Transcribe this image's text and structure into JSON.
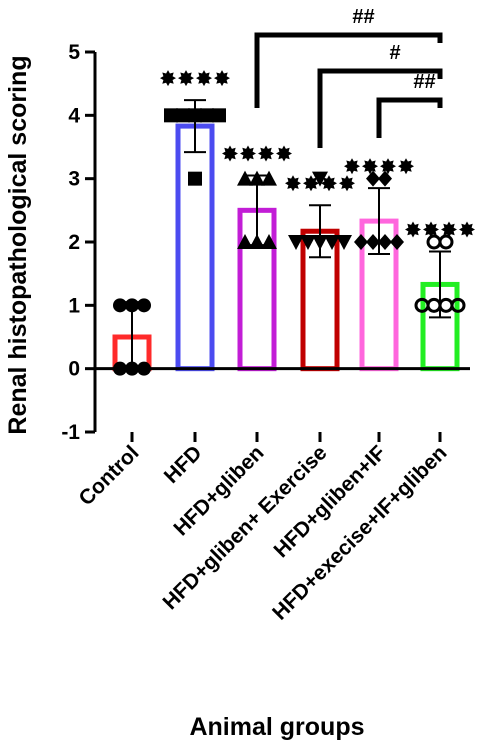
{
  "chart_data": {
    "type": "bar",
    "title": "",
    "ylabel": "Renal histopathological scoring",
    "xlabel": "Animal groups",
    "ylim": [
      -1,
      5
    ],
    "yticks": [
      -1,
      0,
      1,
      2,
      3,
      4,
      5
    ],
    "categories": [
      "Control",
      "HFD",
      "HFD+gliben",
      "HFD+gliben+ Exercise",
      "HFD+gliben+IF",
      "HFD+execise+IF+gliben"
    ],
    "values": [
      0.5,
      3.83,
      2.5,
      2.17,
      2.33,
      1.33
    ],
    "sd": [
      0.55,
      0.41,
      0.55,
      0.41,
      0.52,
      0.52
    ],
    "colors": [
      "#ff2a2a",
      "#4b4bf0",
      "#c21dd6",
      "#c00000",
      "#ff66dd",
      "#22ee22"
    ],
    "markers": [
      "circle",
      "square",
      "triangle",
      "triangle-down",
      "diamond",
      "circle-open"
    ],
    "points": [
      [
        1,
        1,
        1,
        0,
        0,
        0
      ],
      [
        4,
        4,
        4,
        4,
        4,
        3
      ],
      [
        3,
        3,
        3,
        2,
        2,
        2
      ],
      [
        3,
        2,
        2,
        2,
        2,
        2
      ],
      [
        3,
        2,
        2,
        2,
        2,
        3
      ],
      [
        2,
        2,
        1,
        1,
        1,
        1
      ]
    ],
    "stars": [
      "",
      "****",
      "****",
      "****",
      "****",
      "****"
    ],
    "comparisons": [
      {
        "from": 2,
        "to": 5,
        "label": "##"
      },
      {
        "from": 3,
        "to": 5,
        "label": "#"
      },
      {
        "from": 4,
        "to": 5,
        "label": "##"
      }
    ]
  }
}
